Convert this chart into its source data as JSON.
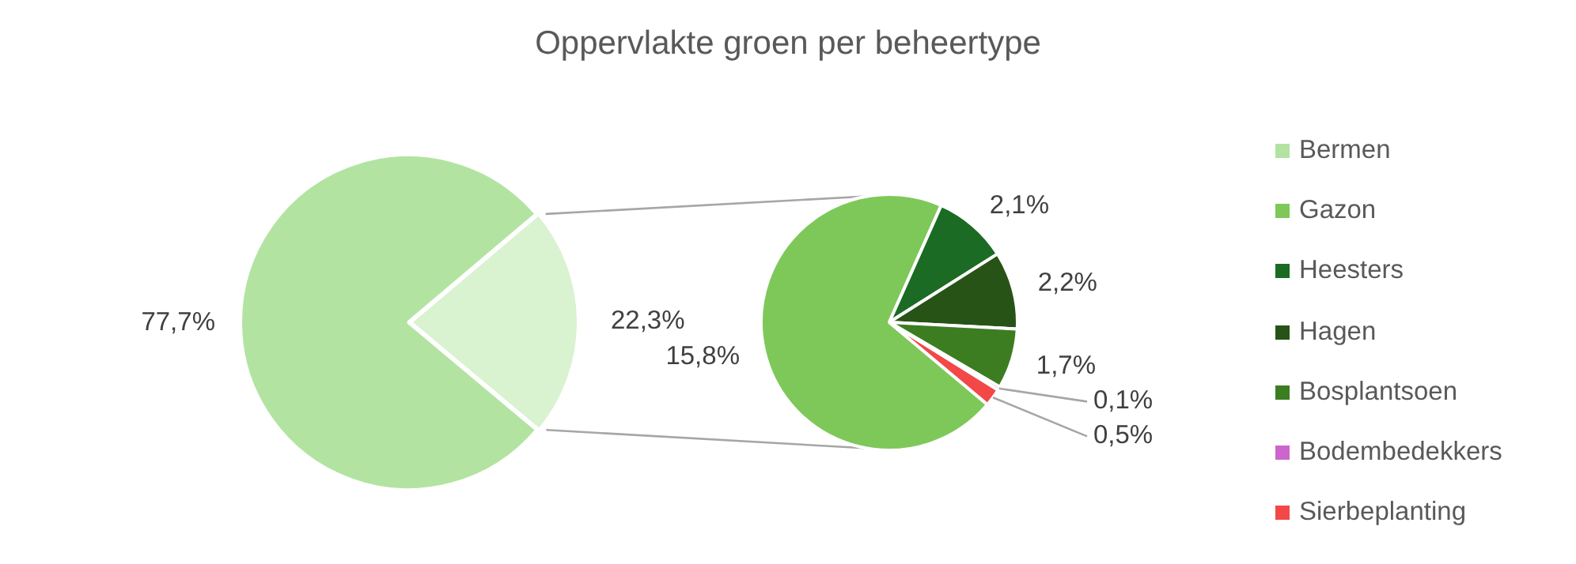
{
  "chart_data": [
    {
      "type": "pie",
      "title": "Oppervlakte groen per beheertype",
      "categories": [
        "Bermen",
        null
      ],
      "values": [
        77.7,
        22.3
      ],
      "colors": [
        "#b3e3a1",
        "#d9f2d0"
      ],
      "value_labels": [
        "77,7%",
        "22,3%"
      ],
      "legend": "right"
    },
    {
      "type": "pie",
      "categories": [
        "Gazon",
        "Heesters",
        "Hagen",
        "Bosplantsoen",
        "Bodembedekkers",
        "Sierbeplanting"
      ],
      "values": [
        15.8,
        2.1,
        2.2,
        1.7,
        0.1,
        0.5
      ],
      "colors": [
        "#7ec85a",
        "#1b6b24",
        "#275317",
        "#3c7d22",
        "#cc66cc",
        "#f24848"
      ],
      "value_labels": [
        "15,8%",
        "2,1%",
        "2,2%",
        "1,7%",
        "0,1%",
        "0,5%"
      ],
      "legend": "right"
    }
  ]
}
